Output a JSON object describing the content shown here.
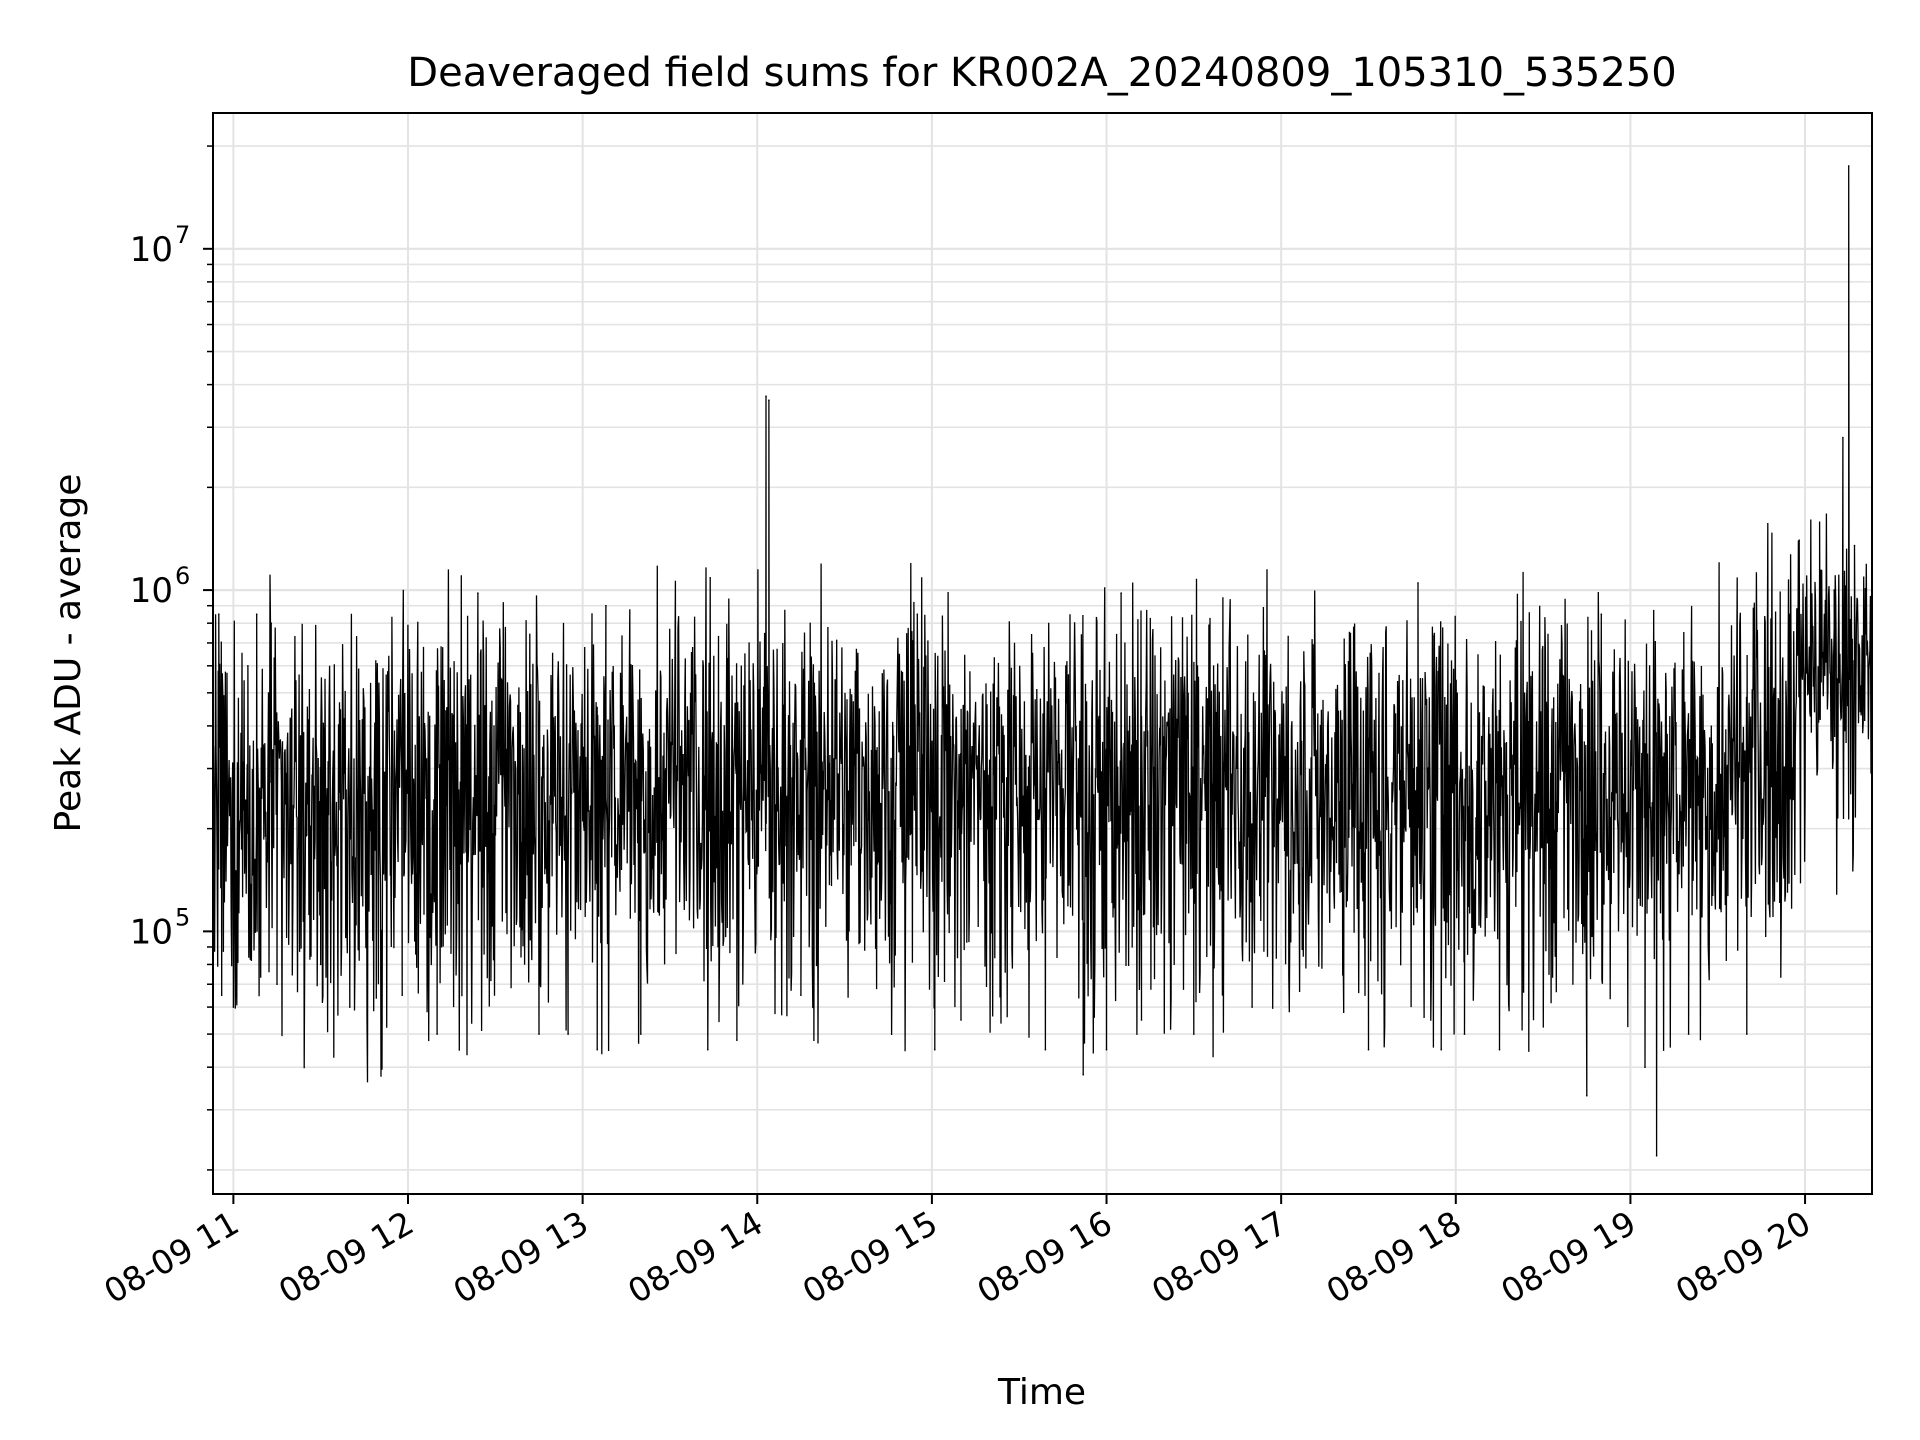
{
  "chart_data": {
    "type": "line",
    "title": "Deaveraged field sums for KR002A_20240809_105310_535250",
    "xlabel": "Time",
    "ylabel": "Peak ADU - average",
    "y_scale": "log",
    "ylim": [
      17000,
      25000000
    ],
    "xlim": [
      "2024-08-09 10:53",
      "2024-08-09 20:23"
    ],
    "grid": "major and minor, light gray",
    "line_color": "#000000",
    "x_ticks": [
      {
        "t": "2024-08-09 11:00",
        "label": "08-09 11"
      },
      {
        "t": "2024-08-09 12:00",
        "label": "08-09 12"
      },
      {
        "t": "2024-08-09 13:00",
        "label": "08-09 13"
      },
      {
        "t": "2024-08-09 14:00",
        "label": "08-09 14"
      },
      {
        "t": "2024-08-09 15:00",
        "label": "08-09 15"
      },
      {
        "t": "2024-08-09 16:00",
        "label": "08-09 16"
      },
      {
        "t": "2024-08-09 17:00",
        "label": "08-09 17"
      },
      {
        "t": "2024-08-09 18:00",
        "label": "08-09 18"
      },
      {
        "t": "2024-08-09 19:00",
        "label": "08-09 19"
      },
      {
        "t": "2024-08-09 20:00",
        "label": "08-09 20"
      }
    ],
    "y_ticks": [
      {
        "value": 100000,
        "label": "10",
        "exp": "5"
      },
      {
        "value": 1000000,
        "label": "10",
        "exp": "6"
      },
      {
        "value": 10000000,
        "label": "10",
        "exp": "7"
      }
    ],
    "series": [
      {
        "points": [
          [
            "2024-08-09 10:53",
            300000
          ],
          [
            "2024-08-09 10:55",
            850000
          ],
          [
            "2024-08-09 10:56",
            65000
          ],
          [
            "2024-08-09 11:00",
            60000
          ],
          [
            "2024-08-09 11:05",
            600000
          ],
          [
            "2024-08-09 11:08",
            850000
          ],
          [
            "2024-08-09 11:13",
            800000
          ],
          [
            "2024-08-09 11:15",
            70000
          ],
          [
            "2024-08-09 11:30",
            80000
          ],
          [
            "2024-08-09 11:40",
            60000
          ],
          [
            "2024-08-09 11:58",
            65000
          ],
          [
            "2024-08-09 12:10",
            50000
          ],
          [
            "2024-08-09 12:24",
            980000
          ],
          [
            "2024-08-09 12:45",
            50000
          ],
          [
            "2024-08-09 12:55",
            50000
          ],
          [
            "2024-08-09 13:05",
            45000
          ],
          [
            "2024-08-09 13:08",
            900000
          ],
          [
            "2024-08-09 13:20",
            50000
          ],
          [
            "2024-08-09 13:43",
            45000
          ],
          [
            "2024-08-09 13:53",
            48000
          ],
          [
            "2024-08-09 14:03",
            3700000
          ],
          [
            "2024-08-09 14:04",
            3600000
          ],
          [
            "2024-08-09 14:15",
            65000
          ],
          [
            "2024-08-09 14:55",
            850000
          ],
          [
            "2024-08-09 15:01",
            45000
          ],
          [
            "2024-08-09 15:10",
            55000
          ],
          [
            "2024-08-09 15:39",
            45000
          ],
          [
            "2024-08-09 15:52",
            38000
          ],
          [
            "2024-08-09 16:00",
            45000
          ],
          [
            "2024-08-09 16:05",
            980000
          ],
          [
            "2024-08-09 16:12",
            55000
          ],
          [
            "2024-08-09 16:30",
            50000
          ],
          [
            "2024-08-09 16:50",
            60000
          ],
          [
            "2024-08-09 17:30",
            45000
          ],
          [
            "2024-08-09 17:47",
            1050000
          ],
          [
            "2024-08-09 17:55",
            45000
          ],
          [
            "2024-08-09 18:03",
            50000
          ],
          [
            "2024-08-09 18:15",
            45000
          ],
          [
            "2024-08-09 18:45",
            33000
          ],
          [
            "2024-08-09 18:50",
            850000
          ],
          [
            "2024-08-09 19:05",
            40000
          ],
          [
            "2024-08-09 19:09",
            22000
          ],
          [
            "2024-08-09 19:20",
            50000
          ],
          [
            "2024-08-09 19:40",
            50000
          ],
          [
            "2024-08-09 19:58",
            1400000
          ],
          [
            "2024-08-09 20:05",
            1150000
          ],
          [
            "2024-08-09 20:10",
            1000000
          ],
          [
            "2024-08-09 20:13",
            2800000
          ],
          [
            "2024-08-09 20:15",
            17500000
          ],
          [
            "2024-08-09 20:17",
            1350000
          ],
          [
            "2024-08-09 20:23",
            600000
          ]
        ]
      }
    ]
  }
}
